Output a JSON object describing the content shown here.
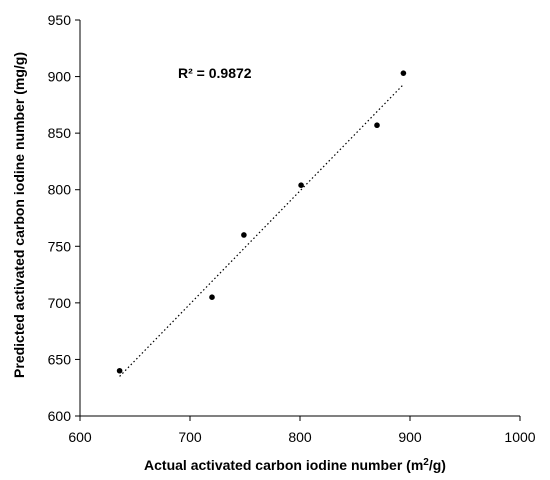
{
  "chart_data": {
    "type": "scatter",
    "xlabel_main": "Actual activated carbon iodine number (m",
    "xlabel_sup": "2",
    "xlabel_tail": "/g)",
    "ylabel": "Predicted activated carbon iodine number (mg/g)",
    "xlim": [
      600,
      1000
    ],
    "ylim": [
      600,
      950
    ],
    "xticks": [
      600,
      700,
      800,
      900,
      1000
    ],
    "yticks": [
      600,
      650,
      700,
      750,
      800,
      850,
      900,
      950
    ],
    "grid": false,
    "points": [
      {
        "x": 636,
        "y": 640
      },
      {
        "x": 720,
        "y": 705
      },
      {
        "x": 749,
        "y": 760
      },
      {
        "x": 801,
        "y": 804
      },
      {
        "x": 870,
        "y": 857
      },
      {
        "x": 894,
        "y": 903
      }
    ],
    "trendline": {
      "x_start": 636,
      "y_start": 635,
      "x_end": 894,
      "y_end": 893,
      "style": "dotted"
    },
    "annotation": "R² = 0.9872"
  }
}
